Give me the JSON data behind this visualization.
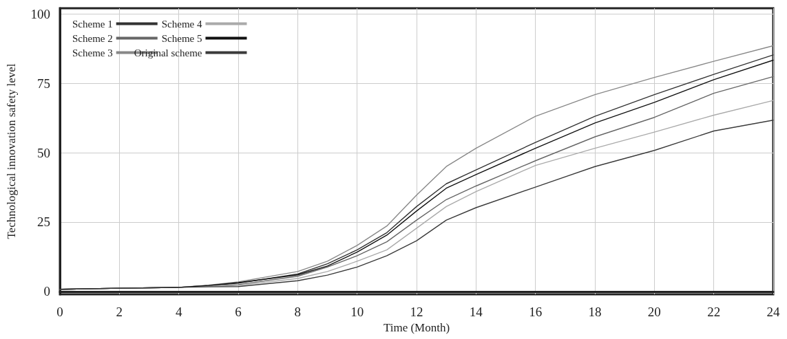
{
  "chart_data": {
    "type": "line",
    "xlabel": "Time (Month)",
    "ylabel": "Technological innovation safety level",
    "x": [
      0,
      2,
      4,
      5,
      6,
      8,
      9,
      10,
      11,
      12,
      13,
      14,
      16,
      18,
      20,
      22,
      24
    ],
    "xlim": [
      0,
      24
    ],
    "xticks": [
      0,
      2,
      4,
      6,
      8,
      10,
      12,
      14,
      16,
      18,
      20,
      22,
      24
    ],
    "ylim": [
      -1,
      102
    ],
    "yticks": [
      0,
      25,
      50,
      75,
      100
    ],
    "grid": true,
    "legend": "top left",
    "marker": "none",
    "line_style": "solid",
    "series": [
      {
        "name": "Scheme 1",
        "color": "#333333",
        "values": [
          0.8,
          1.2,
          1.5,
          2.2,
          3.0,
          6.3,
          10.0,
          15.0,
          21.2,
          30.6,
          38.8,
          43.8,
          53.7,
          63.1,
          70.9,
          78.2,
          85.2
        ]
      },
      {
        "name": "Scheme 2",
        "color": "#666666",
        "values": [
          0.8,
          1.2,
          1.5,
          2.0,
          2.5,
          5.5,
          8.8,
          12.9,
          17.9,
          25.7,
          33.1,
          38.0,
          47.1,
          55.7,
          62.7,
          71.4,
          77.4
        ]
      },
      {
        "name": "Scheme 3",
        "color": "#888888",
        "values": [
          0.8,
          1.2,
          1.5,
          2.3,
          3.5,
          7.2,
          10.9,
          16.6,
          23.6,
          34.7,
          45.0,
          51.6,
          63.1,
          70.9,
          77.1,
          82.9,
          88.5
        ]
      },
      {
        "name": "Scheme 4",
        "color": "#aaaaaa",
        "values": [
          0.8,
          1.2,
          1.5,
          1.9,
          2.2,
          4.7,
          7.2,
          10.9,
          15.0,
          22.8,
          30.6,
          36.0,
          45.4,
          51.6,
          57.4,
          63.5,
          68.8
        ]
      },
      {
        "name": "Scheme 5",
        "color": "#111111",
        "values": [
          0.8,
          1.2,
          1.5,
          2.2,
          3.2,
          6.0,
          9.2,
          14.2,
          20.3,
          29.0,
          37.2,
          42.1,
          51.6,
          60.7,
          68.1,
          76.3,
          83.3
        ]
      },
      {
        "name": "Original scheme",
        "color": "#3a3a3a",
        "values": [
          0.8,
          1.2,
          1.5,
          1.7,
          1.8,
          3.9,
          5.9,
          8.8,
          12.9,
          18.3,
          25.7,
          30.2,
          37.6,
          45.0,
          50.8,
          57.8,
          61.7
        ]
      }
    ]
  }
}
